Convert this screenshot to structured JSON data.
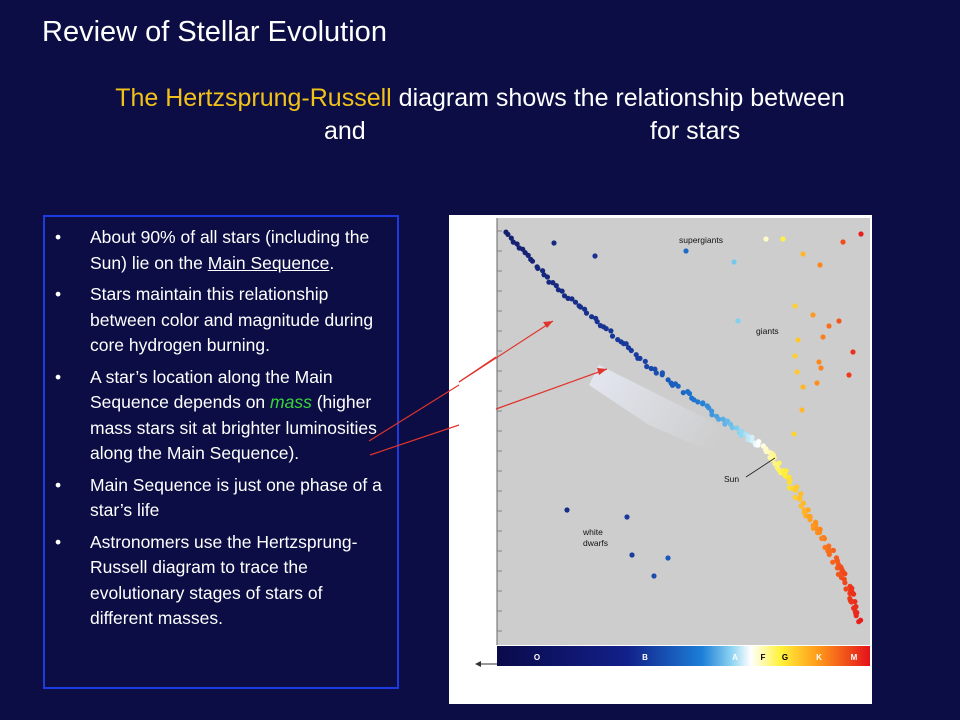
{
  "slide": {
    "title": "Review of Stellar Evolution",
    "subtitle_highlight": "The Hertzsprung-Russell",
    "subtitle_rest": " diagram shows the relationship between",
    "subtitle_and": "and",
    "subtitle_for_stars": "for stars"
  },
  "bullets": {
    "b1_before": "About 90% of all stars (including the Sun) lie on the ",
    "b1_link": "Main Sequence",
    "b1_after": ".",
    "b2": "Stars maintain this relationship between color and magnitude during core hydrogen burning.",
    "b3_before": "A star’s location along the Main Sequence depends on ",
    "b3_mass": "mass",
    "b3_after": " (higher mass stars sit at brighter luminosities along the Main Sequence).",
    "b4": "Main Sequence is just one phase of a star’s life",
    "b5": "Astronomers use the Hertzsprung-Russell diagram to trace the evolutionary stages of stars of different masses."
  },
  "diagram": {
    "labels": {
      "supergiants": "supergiants",
      "giants": "giants",
      "sun": "Sun",
      "white": "white",
      "dwarfs": "dwarfs"
    },
    "spectral_classes": [
      "O",
      "B",
      "A",
      "F",
      "G",
      "K",
      "M"
    ],
    "colors": {
      "slide_bg": "#0b0d44",
      "highlight": "#f2c21a",
      "mass": "#36d83a",
      "box_border": "#1e3be0",
      "plot_bg": "#cdcdcd",
      "arrow": "#e0342c"
    }
  }
}
